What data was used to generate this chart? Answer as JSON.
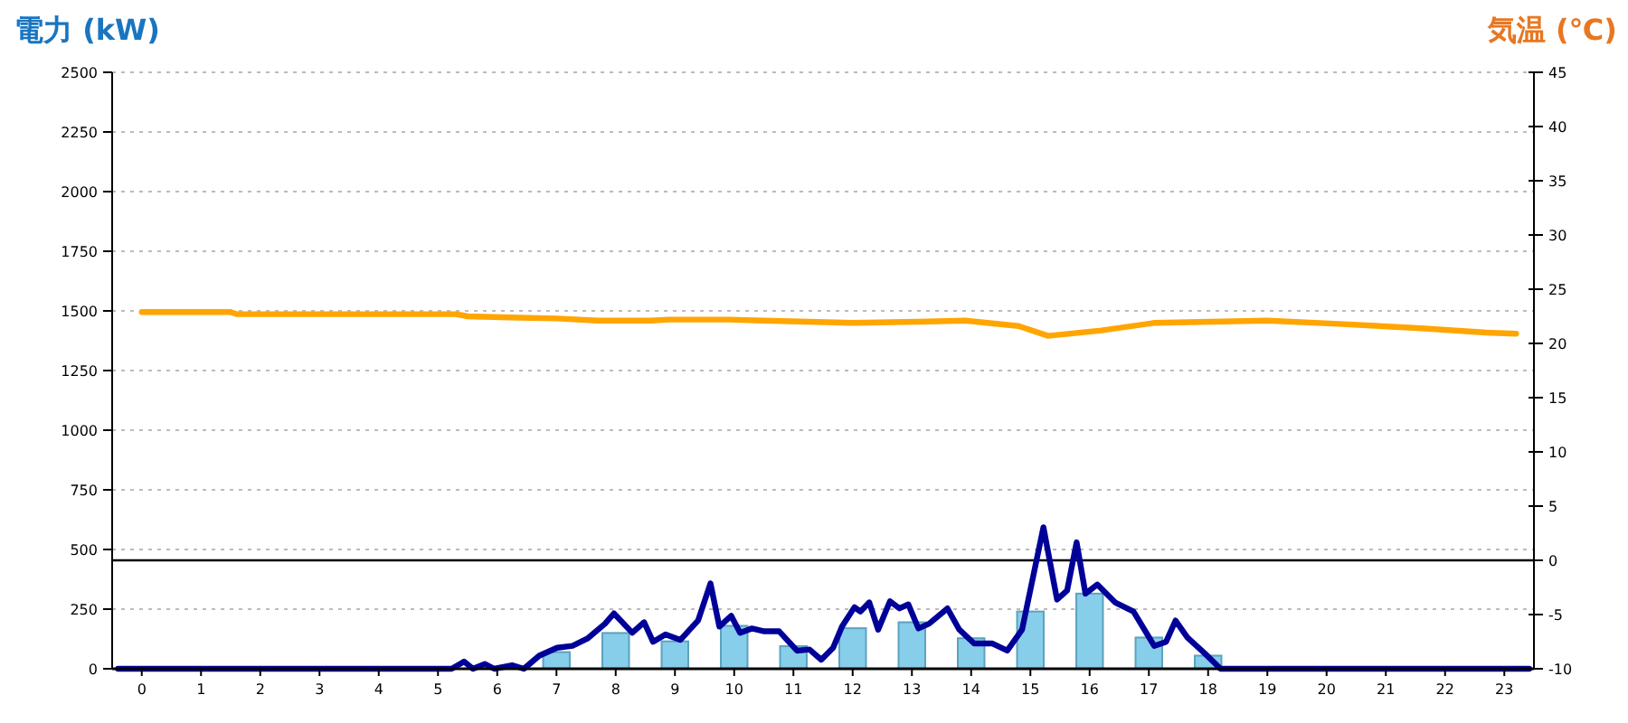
{
  "chart_data": {
    "type": "bar",
    "ylabel": "電力 (kW)",
    "y2label": "気温 (℃)",
    "x": [
      0,
      1,
      2,
      3,
      4,
      5,
      6,
      7,
      8,
      9,
      10,
      11,
      12,
      13,
      14,
      15,
      16,
      17,
      18,
      19,
      20,
      21,
      22,
      23
    ],
    "xlim": [
      -0.5,
      23.5
    ],
    "xticks": [
      0,
      1,
      2,
      3,
      4,
      5,
      6,
      7,
      8,
      9,
      10,
      11,
      12,
      13,
      14,
      15,
      16,
      17,
      18,
      19,
      20,
      21,
      22,
      23
    ],
    "ylim": [
      0,
      2500
    ],
    "yticks": [
      0,
      250,
      500,
      750,
      1000,
      1250,
      1500,
      1750,
      2000,
      2250,
      2500
    ],
    "y2lim": [
      -10,
      45
    ],
    "y2ticks": [
      -10,
      -5,
      0,
      5,
      10,
      15,
      20,
      25,
      30,
      35,
      40,
      45
    ],
    "grid": "y",
    "ref_lines": [
      {
        "axis": "y2",
        "value": 0,
        "color": "#000000"
      }
    ],
    "series": [
      {
        "color": "#87ceeb",
        "values": [
          0,
          0,
          0,
          0,
          0,
          0,
          0,
          70,
          150,
          115,
          180,
          95,
          170,
          195,
          128,
          240,
          315,
          131,
          55,
          0,
          0,
          0,
          0,
          0
        ]
      },
      {
        "type": "line",
        "color": "#000099",
        "x": [
          -0.4,
          5.23,
          5.44,
          5.59,
          5.79,
          5.95,
          6.25,
          6.45,
          6.71,
          7.01,
          7.27,
          7.52,
          7.82,
          7.97,
          8.28,
          8.48,
          8.63,
          8.84,
          9.09,
          9.39,
          9.6,
          9.75,
          9.95,
          10.1,
          10.3,
          10.51,
          10.76,
          11.06,
          11.27,
          11.47,
          11.67,
          11.82,
          12.03,
          12.13,
          12.28,
          12.43,
          12.63,
          12.79,
          12.94,
          13.11,
          13.29,
          13.6,
          13.8,
          14.05,
          14.36,
          14.61,
          14.86,
          15.22,
          15.45,
          15.62,
          15.78,
          15.93,
          16.13,
          16.43,
          16.74,
          17.09,
          17.29,
          17.45,
          17.65,
          17.95,
          18.21,
          23.42
        ],
        "values": [
          0,
          0,
          30,
          0,
          20,
          0,
          15,
          0,
          55,
          88,
          96,
          126,
          189,
          232,
          151,
          195,
          113,
          144,
          121,
          202,
          358,
          177,
          222,
          151,
          169,
          157,
          157,
          76,
          81,
          38,
          88,
          177,
          258,
          240,
          278,
          164,
          283,
          253,
          270,
          169,
          189,
          253,
          164,
          106,
          106,
          76,
          164,
          593,
          290,
          328,
          530,
          315,
          353,
          278,
          240,
          96,
          113,
          202,
          131,
          63,
          0,
          0
        ]
      },
      {
        "type": "line",
        "axis": "y2",
        "color": "#ffa500",
        "x": [
          0,
          1.5,
          1.6,
          5.3,
          5.5,
          6.2,
          7.0,
          7.7,
          8.6,
          8.9,
          9.9,
          10.5,
          12.0,
          13.1,
          13.9,
          14.8,
          15.3,
          16.2,
          17.1,
          19.0,
          20.2,
          21.6,
          22.7,
          23.2
        ],
        "values": [
          22.9,
          22.9,
          22.7,
          22.7,
          22.5,
          22.4,
          22.3,
          22.1,
          22.1,
          22.2,
          22.2,
          22.1,
          21.9,
          22.0,
          22.1,
          21.6,
          20.7,
          21.2,
          21.9,
          22.1,
          21.8,
          21.4,
          21.0,
          20.9
        ]
      }
    ]
  }
}
